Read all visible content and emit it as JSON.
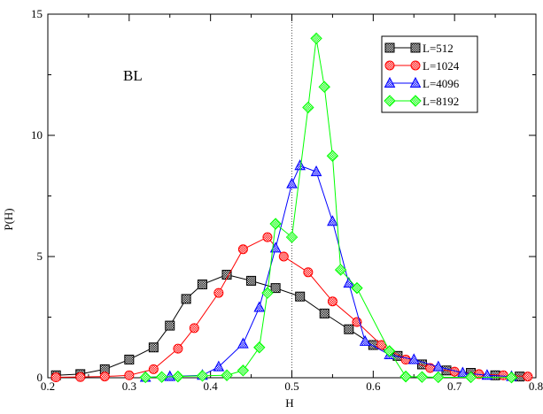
{
  "chart_data": {
    "type": "line",
    "xlabel": "H",
    "ylabel": "P(H)",
    "xlim": [
      0.2,
      0.8
    ],
    "ylim": [
      0,
      15
    ],
    "xticks": [
      "0.2",
      "0.3",
      "0.4",
      "0.5",
      "0.6",
      "0.7",
      "0.8"
    ],
    "yticks": [
      "0",
      "5",
      "10",
      "15"
    ],
    "grid": false,
    "legend_placement": "top-right",
    "annotation": "BL",
    "reference_line_x": 0.5,
    "series": [
      {
        "name": "L=512",
        "color": "#000000",
        "marker": "square",
        "x": [
          0.21,
          0.24,
          0.27,
          0.3,
          0.33,
          0.35,
          0.37,
          0.39,
          0.42,
          0.45,
          0.48,
          0.51,
          0.54,
          0.57,
          0.6,
          0.63,
          0.66,
          0.69,
          0.72,
          0.75,
          0.78
        ],
        "y": [
          0.1,
          0.15,
          0.35,
          0.75,
          1.25,
          2.15,
          3.25,
          3.85,
          4.25,
          4.0,
          3.7,
          3.35,
          2.65,
          2.0,
          1.35,
          0.9,
          0.55,
          0.3,
          0.2,
          0.1,
          0.05
        ]
      },
      {
        "name": "L=1024",
        "color": "#ff0000",
        "marker": "circle",
        "x": [
          0.21,
          0.24,
          0.27,
          0.3,
          0.33,
          0.36,
          0.38,
          0.41,
          0.44,
          0.47,
          0.49,
          0.52,
          0.55,
          0.58,
          0.61,
          0.64,
          0.67,
          0.7,
          0.73,
          0.76,
          0.79
        ],
        "y": [
          0.02,
          0.03,
          0.05,
          0.1,
          0.35,
          1.2,
          2.05,
          3.5,
          5.3,
          5.8,
          5.0,
          4.35,
          3.15,
          2.3,
          1.35,
          0.75,
          0.4,
          0.25,
          0.15,
          0.1,
          0.05
        ]
      },
      {
        "name": "L=4096",
        "color": "#0000ff",
        "marker": "triangle",
        "x": [
          0.32,
          0.35,
          0.39,
          0.41,
          0.44,
          0.46,
          0.48,
          0.5,
          0.51,
          0.53,
          0.55,
          0.57,
          0.59,
          0.62,
          0.65,
          0.68,
          0.71,
          0.74,
          0.77
        ],
        "y": [
          0.02,
          0.05,
          0.1,
          0.45,
          1.4,
          2.9,
          5.35,
          8.0,
          8.75,
          8.5,
          6.45,
          3.9,
          1.5,
          0.95,
          0.75,
          0.45,
          0.2,
          0.1,
          0.05
        ]
      },
      {
        "name": "L=8192",
        "color": "#00ff00",
        "marker": "diamond",
        "x": [
          0.32,
          0.34,
          0.36,
          0.39,
          0.42,
          0.44,
          0.46,
          0.47,
          0.48,
          0.5,
          0.52,
          0.53,
          0.54,
          0.55,
          0.56,
          0.58,
          0.62,
          0.64,
          0.66,
          0.68,
          0.72,
          0.77
        ],
        "y": [
          0.02,
          0.03,
          0.05,
          0.08,
          0.1,
          0.3,
          1.25,
          3.5,
          6.35,
          5.8,
          11.15,
          14.0,
          12.0,
          9.15,
          4.45,
          3.7,
          1.1,
          0.05,
          0.03,
          0.02,
          0.02,
          0.01
        ]
      }
    ]
  }
}
